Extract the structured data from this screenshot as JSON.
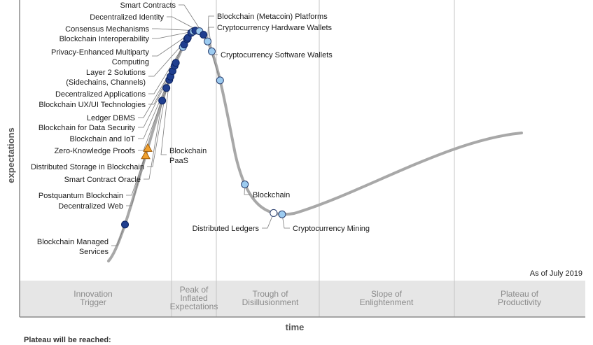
{
  "chart_data": {
    "type": "hype-cycle",
    "title": "",
    "xlabel": "time",
    "ylabel": "expectations",
    "as_of": "As of July 2019",
    "footer": "Plateau will be reached:",
    "phases": [
      {
        "lines": [
          "Innovation",
          "Trigger"
        ]
      },
      {
        "lines": [
          "Peak of",
          "Inflated",
          "Expectations"
        ]
      },
      {
        "lines": [
          "Trough of",
          "Disillusionment"
        ]
      },
      {
        "lines": [
          "Slope of",
          "Enlightenment"
        ]
      },
      {
        "lines": [
          "Plateau of",
          "Productivity"
        ]
      }
    ],
    "marker_colors": {
      "less_than_2": "#ffffff",
      "2_to_5": "#9ccbf0",
      "5_to_10": "#1f3e8f",
      "more_than_10": "#f0a02e"
    },
    "points": [
      {
        "name": "Blockchain Managed Services",
        "lines": [
          "Blockchain Managed",
          "Services"
        ],
        "position": 0.04,
        "marker": "5_to_10"
      },
      {
        "name": "Decentralized Web",
        "lines": [
          "Decentralized Web"
        ],
        "position": 0.09,
        "marker": "more_than_10"
      },
      {
        "name": "Postquantum Blockchain",
        "lines": [
          "Postquantum Blockchain"
        ],
        "position": 0.095,
        "marker": "more_than_10"
      },
      {
        "name": "Smart Contract Oracle",
        "lines": [
          "Smart Contract Oracle"
        ],
        "position": 0.13,
        "marker": "5_to_10"
      },
      {
        "name": "Distributed Storage in Blockchain",
        "lines": [
          "Distributed Storage in Blockchain"
        ],
        "position": 0.14,
        "marker": "5_to_10"
      },
      {
        "name": "Blockchain PaaS",
        "lines": [
          "Blockchain",
          "PaaS"
        ],
        "position": 0.147,
        "marker": "5_to_10"
      },
      {
        "name": "Zero-Knowledge Proofs",
        "lines": [
          "Zero-Knowledge Proofs"
        ],
        "position": 0.15,
        "marker": "5_to_10"
      },
      {
        "name": "Blockchain and IoT",
        "lines": [
          "Blockchain and IoT"
        ],
        "position": 0.155,
        "marker": "5_to_10"
      },
      {
        "name": "Blockchain for Data Security",
        "lines": [
          "Blockchain for Data Security"
        ],
        "position": 0.16,
        "marker": "5_to_10"
      },
      {
        "name": "Ledger DBMS",
        "lines": [
          "Ledger DBMS"
        ],
        "position": 0.163,
        "marker": "5_to_10"
      },
      {
        "name": "Blockchain UX/UI Technologies",
        "lines": [
          "Blockchain UX/UI Technologies"
        ],
        "position": 0.18,
        "marker": "2_to_5"
      },
      {
        "name": "Decentralized Applications",
        "lines": [
          "Decentralized Applications"
        ],
        "position": 0.183,
        "marker": "5_to_10"
      },
      {
        "name": "Layer 2 Solutions (Sidechains, Channels)",
        "lines": [
          "Layer 2 Solutions",
          "(Sidechains, Channels)"
        ],
        "position": 0.19,
        "marker": "5_to_10"
      },
      {
        "name": "Layer 2 Solutions (Sidechains, Channels) 2",
        "lines": [],
        "position": 0.192,
        "marker": "5_to_10"
      },
      {
        "name": "Privacy-Enhanced Multiparty Computing",
        "lines": [
          "Privacy-Enhanced Multiparty",
          "Computing"
        ],
        "position": 0.2,
        "marker": "5_to_10"
      },
      {
        "name": "Blockchain Interoperability",
        "lines": [
          "Blockchain Interoperability"
        ],
        "position": 0.205,
        "marker": "2_to_5"
      },
      {
        "name": "Consensus Mechanisms",
        "lines": [
          "Consensus Mechanisms"
        ],
        "position": 0.21,
        "marker": "5_to_10"
      },
      {
        "name": "Decentralized Identity",
        "lines": [
          "Decentralized Identity"
        ],
        "position": 0.22,
        "marker": "2_to_5"
      },
      {
        "name": "Smart Contracts",
        "lines": [
          "Smart Contracts"
        ],
        "position": 0.23,
        "marker": "5_to_10"
      },
      {
        "name": "Blockchain (Metacoin) Platforms",
        "lines": [
          "Blockchain (Metacoin) Platforms"
        ],
        "position": 0.24,
        "marker": "2_to_5"
      },
      {
        "name": "Cryptocurrency Hardware Wallets",
        "lines": [
          "Cryptocurrency Hardware Wallets"
        ],
        "position": 0.25,
        "marker": "2_to_5"
      },
      {
        "name": "Cryptocurrency Software Wallets",
        "lines": [
          "Cryptocurrency Software Wallets"
        ],
        "position": 0.27,
        "marker": "2_to_5"
      },
      {
        "name": "Blockchain",
        "lines": [
          "Blockchain"
        ],
        "position": 0.33,
        "marker": "2_to_5"
      },
      {
        "name": "Distributed Ledgers",
        "lines": [
          "Distributed Ledgers"
        ],
        "position": 0.4,
        "marker": "less_than_2"
      },
      {
        "name": "Cryptocurrency Mining",
        "lines": [
          "Cryptocurrency Mining"
        ],
        "position": 0.42,
        "marker": "2_to_5"
      }
    ]
  }
}
